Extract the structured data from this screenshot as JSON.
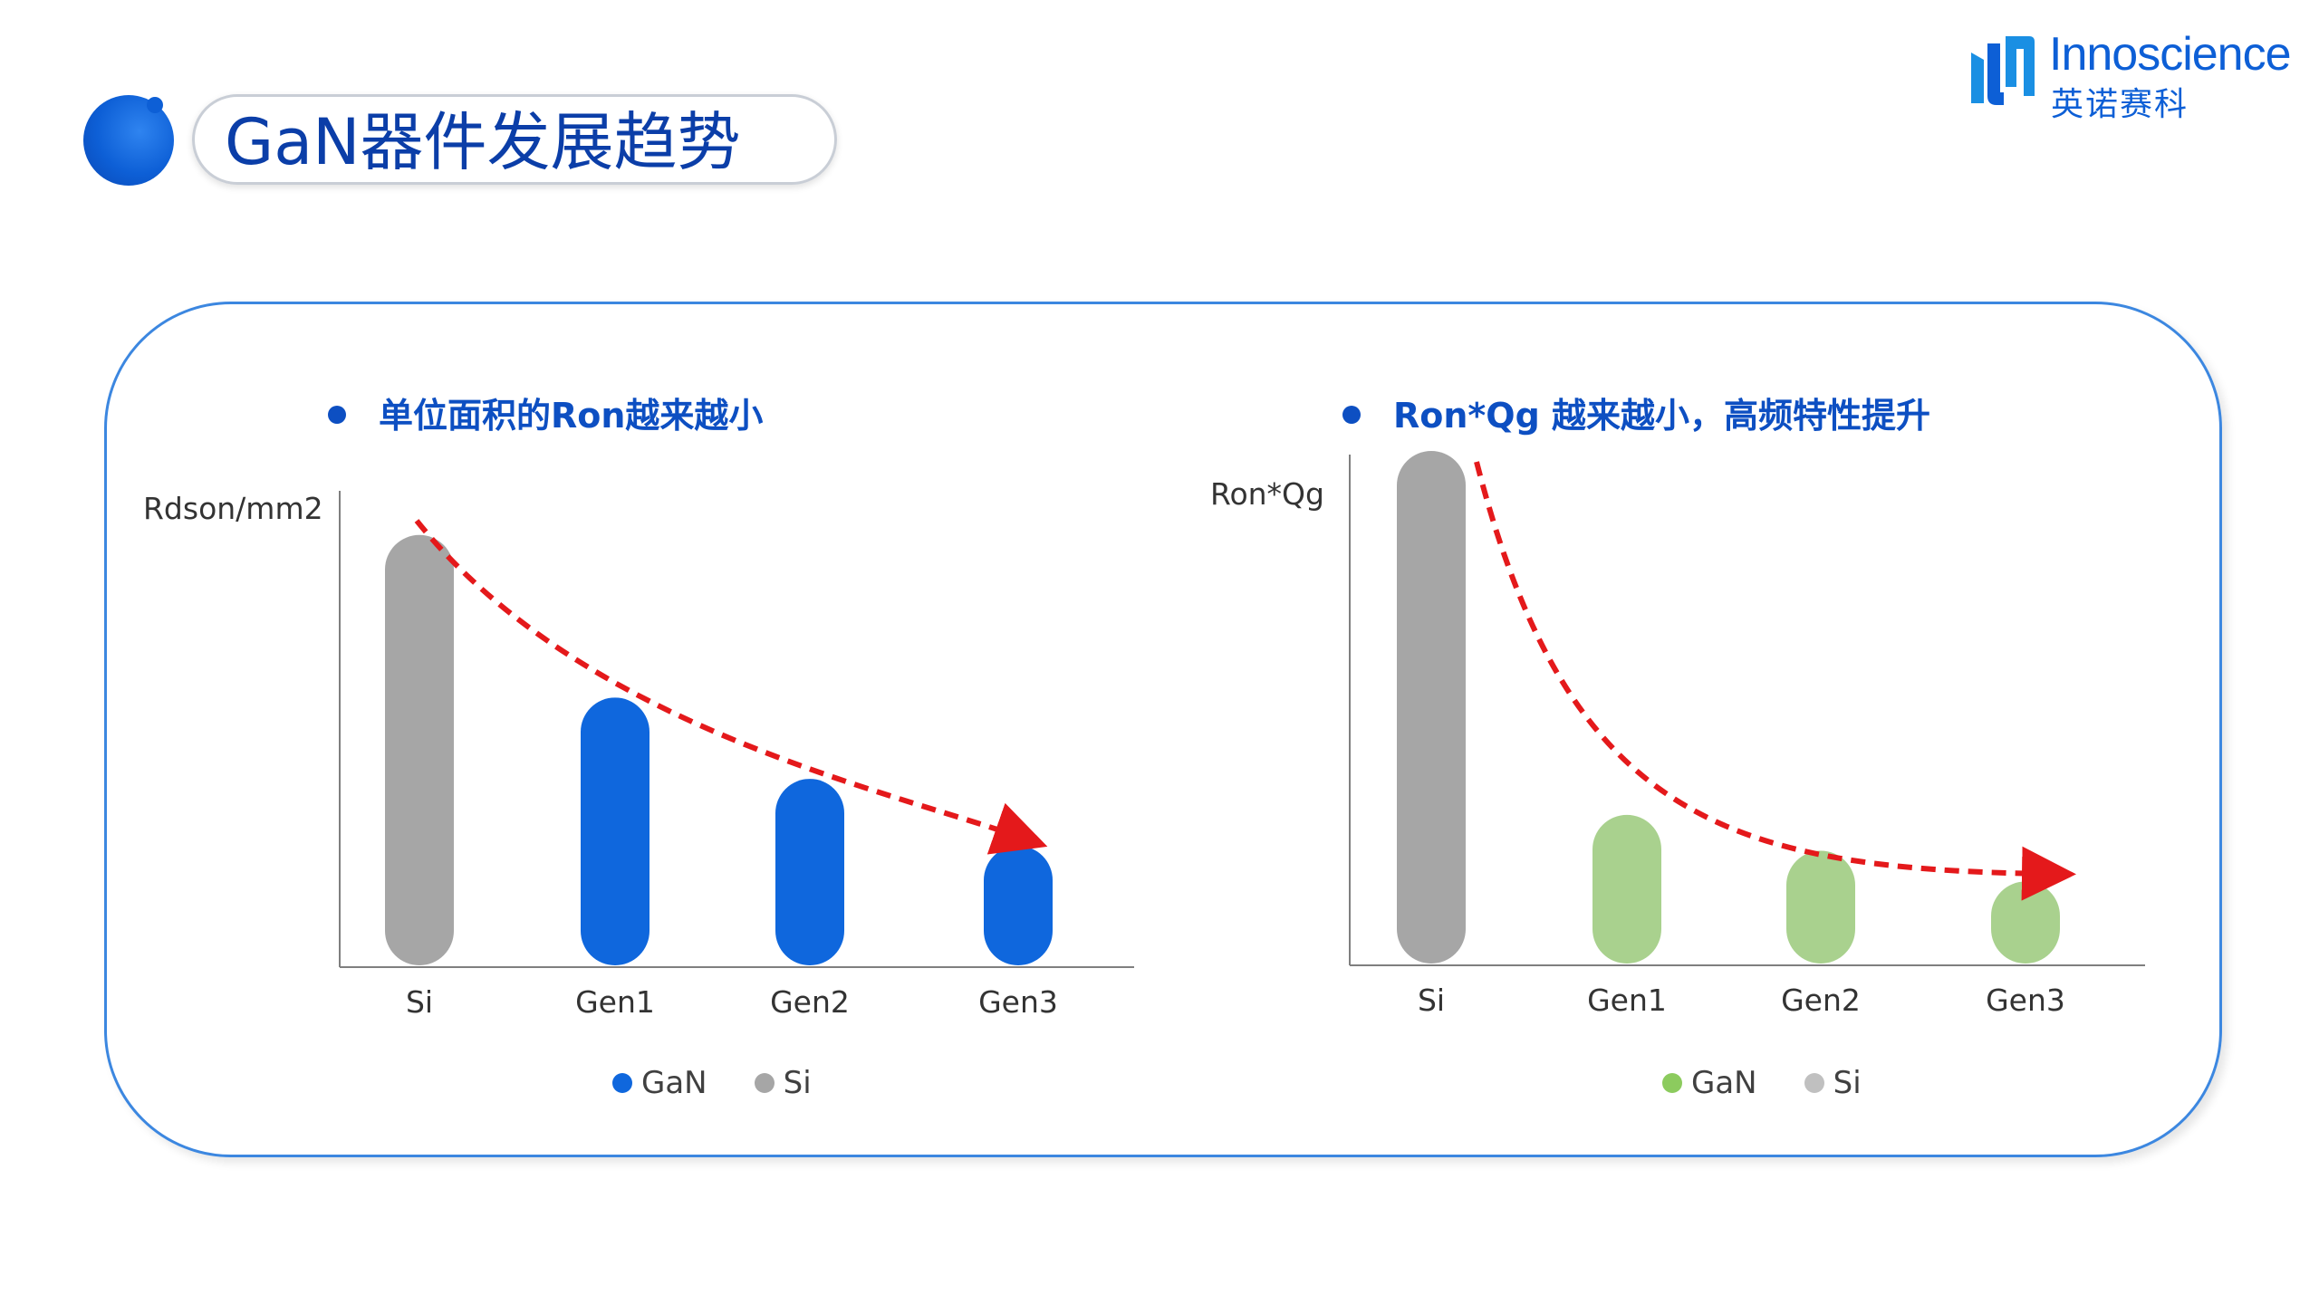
{
  "page": {
    "title": "GaN器件发展趋势"
  },
  "brand": {
    "name": "Innoscience",
    "name_cn": "英诺赛科",
    "color": "#0d5fd6"
  },
  "colors": {
    "si": "#a6a6a6",
    "gan_left": "#0f67dd",
    "gan_right": "#a9d18e",
    "arrow": "#e4191b",
    "axis": "#7f7f7f",
    "legend_si_right": "#c0c0c0",
    "legend_gan_right": "#8ccb5e"
  },
  "left": {
    "heading": "单位面积的Ron越来越小"
  },
  "right": {
    "heading": "Ron*Qg 越来越小，高频特性提升"
  },
  "chart_data": [
    {
      "type": "bar",
      "title": "单位面积的Ron越来越小",
      "ylabel": "Rdson/mm2",
      "categories": [
        "Si",
        "Gen1",
        "Gen2",
        "Gen3"
      ],
      "series": [
        {
          "name": "GaN",
          "values": [
            null,
            56,
            39,
            25
          ]
        },
        {
          "name": "Si",
          "values": [
            90,
            null,
            null,
            null
          ]
        }
      ],
      "ylim": [
        0,
        100
      ],
      "legend": [
        "GaN",
        "Si"
      ],
      "legend_position": "bottom",
      "trend_arrow": "decreasing",
      "grid": false
    },
    {
      "type": "bar",
      "title": "Ron*Qg 越来越小，高频特性提升",
      "ylabel": "Ron*Qg",
      "categories": [
        "Si",
        "Gen1",
        "Gen2",
        "Gen3"
      ],
      "series": [
        {
          "name": "GaN",
          "values": [
            null,
            29,
            22,
            16
          ]
        },
        {
          "name": "Si",
          "values": [
            100,
            null,
            null,
            null
          ]
        }
      ],
      "ylim": [
        0,
        100
      ],
      "legend": [
        "GaN",
        "Si"
      ],
      "legend_position": "bottom",
      "trend_arrow": "decreasing",
      "grid": false
    }
  ]
}
